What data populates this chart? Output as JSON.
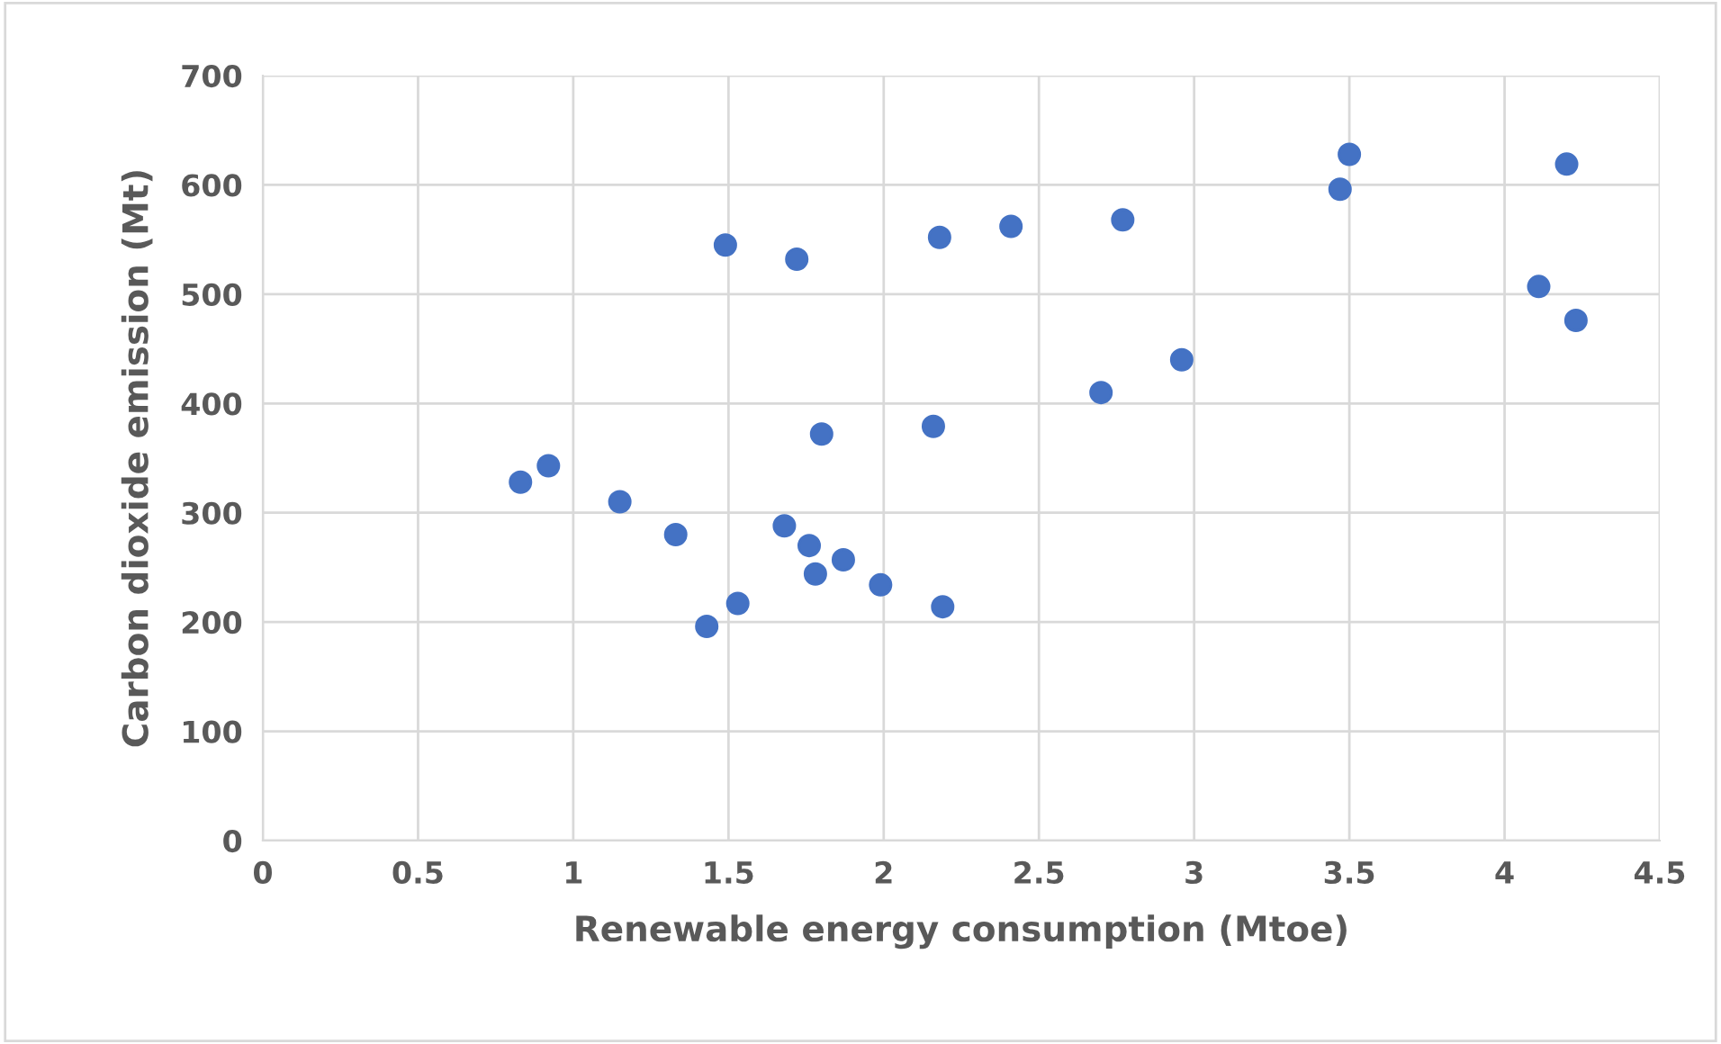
{
  "chart_data": {
    "type": "scatter",
    "xlabel": "Renewable energy consumption (Mtoe)",
    "ylabel": "Carbon dioxide emission (Mt)",
    "x": [
      0.83,
      0.92,
      1.15,
      1.33,
      1.43,
      1.49,
      1.53,
      1.68,
      1.72,
      1.76,
      1.78,
      1.8,
      1.87,
      1.99,
      2.16,
      2.18,
      2.19,
      2.41,
      2.7,
      2.77,
      2.96,
      3.47,
      3.5,
      4.11,
      4.2,
      4.23
    ],
    "series": [
      {
        "color": "#4472c4",
        "values": [
          328,
          343,
          310,
          280,
          196,
          545,
          217,
          288,
          532,
          270,
          244,
          372,
          257,
          234,
          379,
          552,
          214,
          562,
          410,
          568,
          440,
          596,
          628,
          507,
          619,
          476
        ]
      }
    ],
    "xlim": [
      0,
      4.5
    ],
    "xticks": [
      0,
      0.5,
      1,
      1.5,
      2,
      2.5,
      3,
      3.5,
      4,
      4.5
    ],
    "ylim": [
      0,
      700
    ],
    "yticks": [
      0,
      100,
      200,
      300,
      400,
      500,
      600,
      700
    ],
    "grid": true,
    "marker": "circle"
  }
}
